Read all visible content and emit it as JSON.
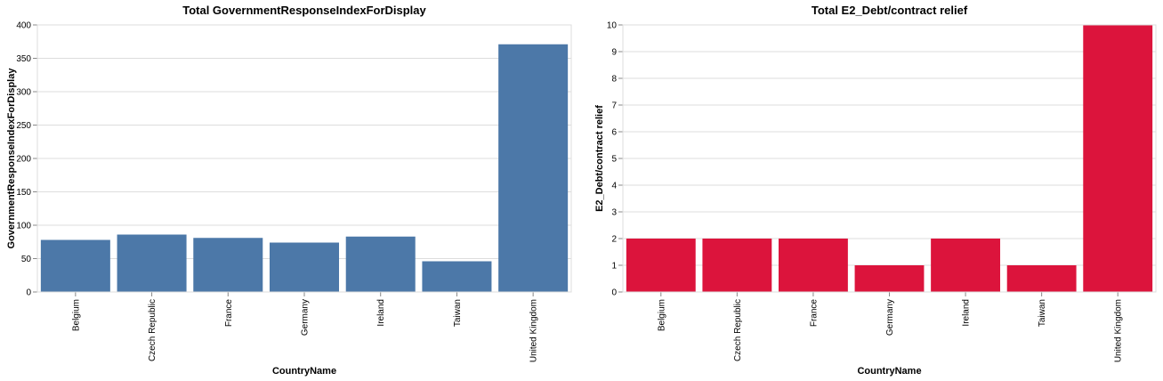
{
  "chart_data": [
    {
      "type": "bar",
      "title": "Total GovernmentResponseIndexForDisplay",
      "xlabel": "CountryName",
      "ylabel": "GovernmentResponseIndexForDisplay",
      "categories": [
        "Belgium",
        "Czech Republic",
        "France",
        "Germany",
        "Ireland",
        "Taiwan",
        "United Kingdom"
      ],
      "values": [
        78,
        86,
        81,
        74,
        83,
        46,
        371
      ],
      "ylim": [
        0,
        400
      ],
      "yticks": [
        0,
        50,
        100,
        150,
        200,
        250,
        300,
        350,
        400
      ],
      "grid": true,
      "color": "#4c78a8"
    },
    {
      "type": "bar",
      "title": "Total E2_Debt/contract relief",
      "xlabel": "CountryName",
      "ylabel": "E2_Debt/contract relief",
      "categories": [
        "Belgium",
        "Czech Republic",
        "France",
        "Germany",
        "Ireland",
        "Taiwan",
        "United Kingdom"
      ],
      "values": [
        2,
        2,
        2,
        1,
        2,
        1,
        10
      ],
      "ylim": [
        0,
        10
      ],
      "yticks": [
        0,
        1,
        2,
        3,
        4,
        5,
        6,
        7,
        8,
        9,
        10
      ],
      "grid": true,
      "color": "#dc143c"
    }
  ]
}
